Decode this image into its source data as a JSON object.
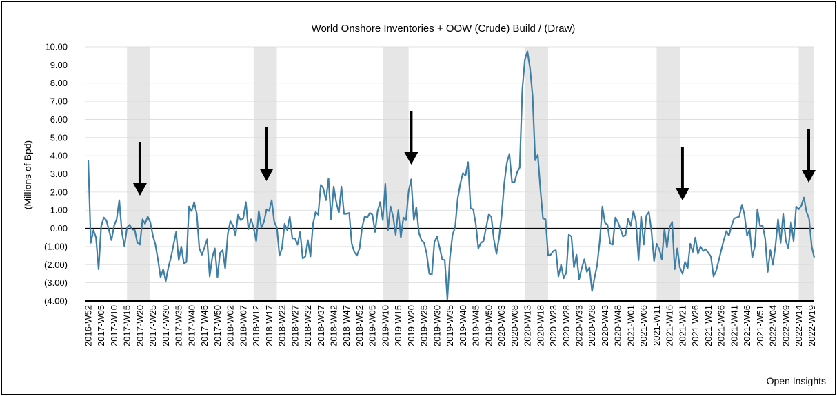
{
  "chart_data": {
    "type": "line",
    "title": "World Onshore Inventories + OOW (Crude) Build / (Draw)",
    "ylabel": "(Millions of Bpd)",
    "xlabel": "",
    "credit": "Open Insights",
    "ylim": [
      -4,
      10
    ],
    "yticks": [
      10,
      9,
      8,
      7,
      6,
      5,
      4,
      3,
      2,
      1,
      0,
      -1,
      -2,
      -3,
      -4
    ],
    "ytick_labels": [
      "10.00",
      "9.00",
      "8.00",
      "7.00",
      "6.00",
      "5.00",
      "4.00",
      "3.00",
      "2.00",
      "1.00",
      "0.00",
      "(1.00)",
      "(2.00)",
      "(3.00)",
      "(4.00)"
    ],
    "xtick_labels": [
      "2016-W52",
      "2017-W05",
      "2017-W10",
      "2017-W15",
      "2017-W20",
      "2017-W25",
      "2017-W30",
      "2017-W35",
      "2017-W40",
      "2017-W45",
      "2017-W50",
      "2018-W02",
      "2018-W07",
      "2018-W12",
      "2018-W17",
      "2018-W22",
      "2018-W27",
      "2018-W32",
      "2018-W37",
      "2018-W42",
      "2018-W47",
      "2018-W52",
      "2019-W05",
      "2019-W10",
      "2019-W15",
      "2019-W20",
      "2019-W25",
      "2019-W30",
      "2019-W35",
      "2019-W40",
      "2019-W45",
      "2019-W50",
      "2020-W03",
      "2020-W08",
      "2020-W13",
      "2020-W18",
      "2020-W23",
      "2020-W28",
      "2020-W33",
      "2020-W38",
      "2020-W43",
      "2020-W48",
      "2021-W01",
      "2021-W06",
      "2021-W11",
      "2021-W16",
      "2021-W21",
      "2021-W26",
      "2021-W31",
      "2021-W36",
      "2021-W41",
      "2021-W46",
      "2021-W51",
      "2022-W04",
      "2022-W09",
      "2022-W14",
      "2022-W19"
    ],
    "shaded_bands_weeks": [
      [
        2017,
        15,
        2017,
        24
      ],
      [
        2018,
        12,
        2018,
        21
      ],
      [
        2019,
        10,
        2019,
        20
      ],
      [
        2020,
        13,
        2020,
        22
      ],
      [
        2021,
        11,
        2021,
        20
      ],
      [
        2022,
        14,
        2022,
        20
      ]
    ],
    "arrow_weeks": [
      "2017-W20",
      "2018-W17",
      "2019-W21",
      "2021-W21",
      "2022-W20"
    ],
    "grid": true,
    "zero_line": true,
    "colors": {
      "line": "#3f7fa6",
      "band": "#e6e6e6",
      "grid": "#d9d9d9",
      "axis": "#000000",
      "arrow": "#000000"
    },
    "series": [
      {
        "values": [
          3.75,
          -0.8,
          -0.1,
          -0.5,
          -2.25,
          0.1,
          0.6,
          0.45,
          -0.1,
          -0.65,
          0.15,
          0.5,
          1.55,
          -0.2,
          -1.0,
          0.05,
          0.2,
          -0.05,
          -0.1,
          -0.8,
          -0.9,
          0.5,
          0.25,
          0.65,
          0.35,
          -0.4,
          -0.9,
          -1.75,
          -2.7,
          -2.25,
          -2.9,
          -2.15,
          -1.6,
          -0.9,
          -0.2,
          -1.75,
          -1.0,
          -1.95,
          -1.85,
          1.2,
          0.95,
          1.45,
          0.8,
          -1.1,
          -1.45,
          -1.05,
          -0.6,
          -2.65,
          -1.6,
          -1.1,
          -2.7,
          -1.35,
          -1.2,
          -2.2,
          -0.3,
          0.4,
          0.15,
          -0.4,
          0.75,
          0.45,
          0.55,
          1.45,
          -0.05,
          0.5,
          0.05,
          -0.7,
          0.95,
          0.05,
          0.35,
          1.05,
          0.95,
          1.55,
          0.35,
          0.05,
          -1.5,
          -1.1,
          0.25,
          -0.1,
          0.65,
          -0.55,
          -0.55,
          -0.9,
          -0.2,
          -1.65,
          -1.55,
          -0.65,
          -1.55,
          0.25,
          0.9,
          0.75,
          2.4,
          2.2,
          1.55,
          2.75,
          0.5,
          2.3,
          1.45,
          0.85,
          2.3,
          0.8,
          0.8,
          0.85,
          -0.85,
          -1.3,
          -1.5,
          -1.1,
          0.05,
          0.65,
          0.6,
          0.85,
          0.75,
          -0.2,
          0.95,
          1.45,
          0.45,
          2.45,
          -0.1,
          1.2,
          0.65,
          -0.35,
          1.0,
          -0.5,
          0.6,
          0.45,
          2.05,
          2.7,
          0.45,
          1.15,
          -0.25,
          -0.65,
          -0.8,
          -1.4,
          -2.5,
          -2.55,
          -0.75,
          -0.45,
          -1.05,
          -1.7,
          -1.75,
          -3.9,
          -1.6,
          -0.35,
          0.05,
          1.65,
          2.45,
          3.05,
          2.9,
          3.65,
          1.1,
          1.05,
          0.25,
          -1.1,
          -0.8,
          -0.7,
          0.05,
          0.75,
          0.65,
          -0.6,
          -1.4,
          -0.55,
          0.7,
          2.45,
          3.6,
          4.1,
          2.55,
          2.55,
          3.1,
          3.35,
          7.65,
          9.3,
          9.75,
          8.8,
          7.3,
          3.75,
          4.05,
          2.15,
          0.55,
          0.5,
          -1.5,
          -1.45,
          -1.25,
          -1.2,
          -2.65,
          -2.0,
          -2.75,
          -2.45,
          -0.35,
          -0.45,
          -2.15,
          -1.45,
          -2.8,
          -2.2,
          -1.7,
          -2.4,
          -2.15,
          -3.45,
          -2.7,
          -2.0,
          -0.65,
          1.2,
          0.3,
          0.2,
          -0.85,
          -0.9,
          0.6,
          0.35,
          -0.05,
          -0.45,
          -0.35,
          0.55,
          0.15,
          0.95,
          0.4,
          -1.75,
          0.65,
          -0.9,
          0.7,
          0.9,
          -0.15,
          -1.8,
          -0.85,
          -1.15,
          -1.7,
          -0.05,
          -1.05,
          0.05,
          0.35,
          -2.25,
          -1.1,
          -2.15,
          -2.5,
          -1.85,
          -2.2,
          -0.85,
          -1.3,
          -0.5,
          -1.4,
          -1.0,
          -1.25,
          -1.15,
          -1.35,
          -1.55,
          -2.65,
          -2.35,
          -1.8,
          -1.2,
          -0.65,
          -0.15,
          -0.4,
          0.15,
          0.55,
          0.6,
          0.65,
          1.3,
          0.75,
          -0.4,
          -0.05,
          -1.6,
          -1.0,
          1.05,
          0.15,
          0.15,
          -0.55,
          -2.4,
          -1.2,
          -2.0,
          -0.95,
          0.5,
          -0.8,
          0.8,
          -0.7,
          -1.1,
          0.35,
          -0.7,
          1.2,
          1.05,
          1.25,
          1.7,
          0.9,
          0.55,
          -1.0,
          -1.6
        ]
      }
    ]
  }
}
